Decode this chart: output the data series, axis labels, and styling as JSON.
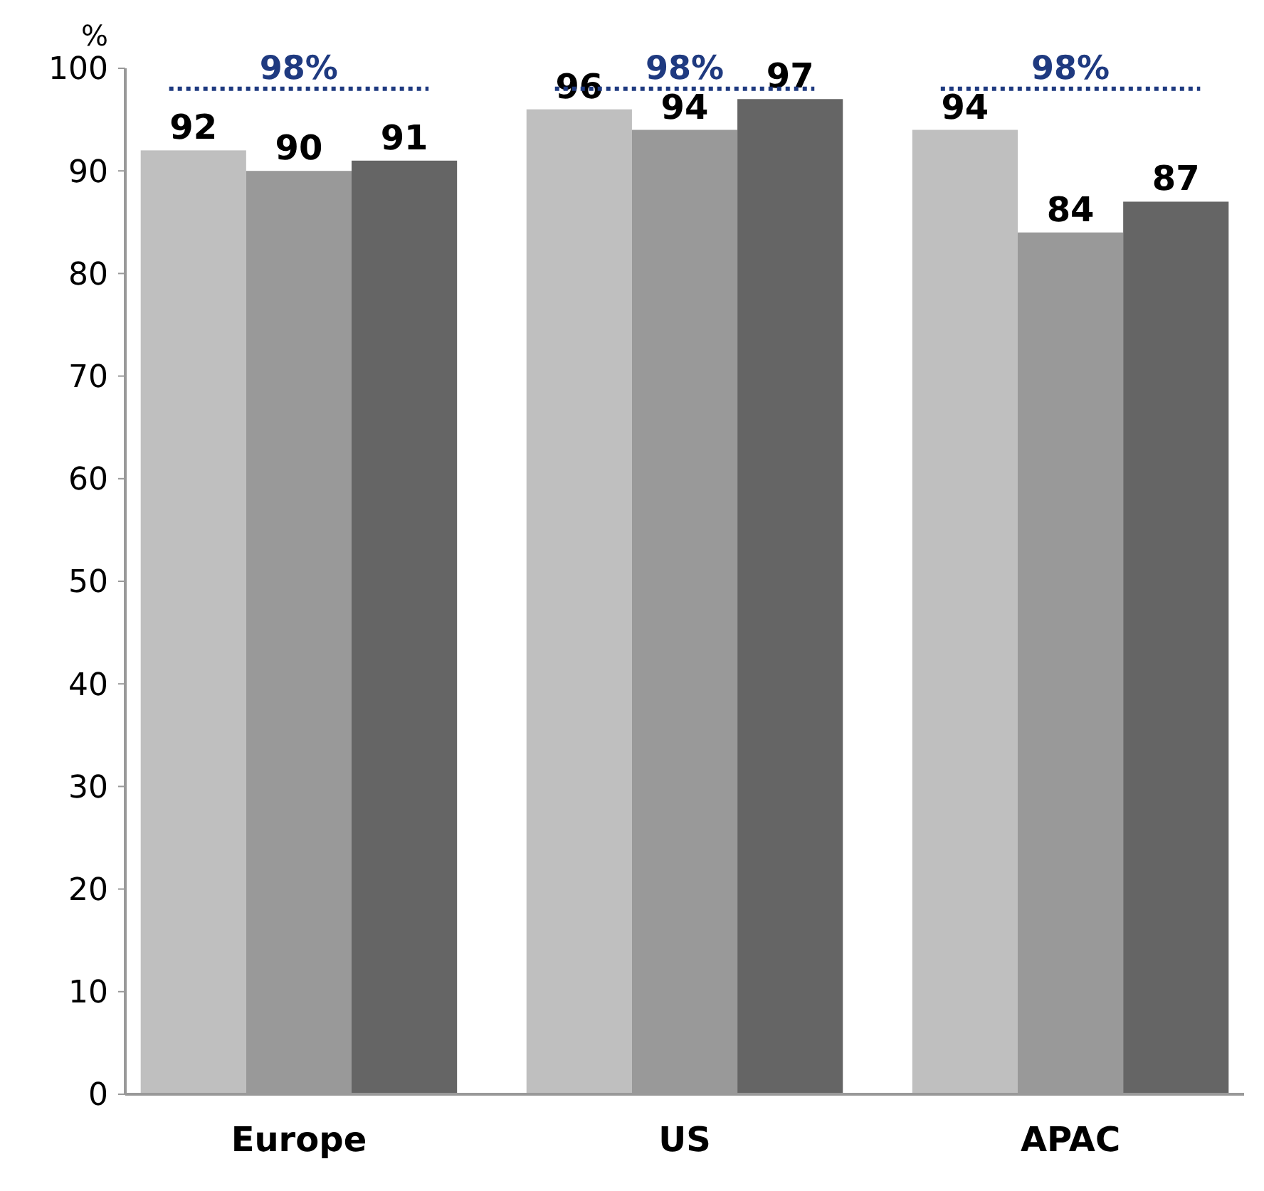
{
  "chart_data": {
    "type": "bar",
    "ylabel": "%",
    "categories": [
      "Europe",
      "US",
      "APAC"
    ],
    "series": [
      {
        "color": "#bfbfbf",
        "values": [
          92,
          96,
          94
        ]
      },
      {
        "color": "#999999",
        "values": [
          90,
          94,
          84
        ]
      },
      {
        "color": "#656565",
        "values": [
          91,
          97,
          87
        ]
      }
    ],
    "ylim": [
      0,
      100
    ],
    "yticks": [
      0,
      10,
      20,
      30,
      40,
      50,
      60,
      70,
      80,
      90,
      100
    ],
    "grid": false,
    "data_labels": true,
    "ref_lines": [
      {
        "axis": "y",
        "value": 98,
        "label": "98%",
        "color": "#1f3a80",
        "line_style": "dotted"
      }
    ]
  }
}
